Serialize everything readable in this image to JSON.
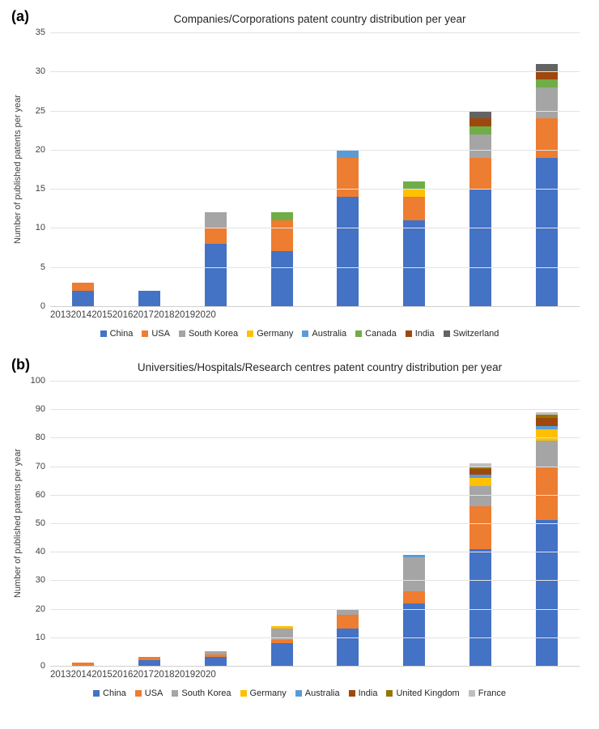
{
  "charts": [
    {
      "panel_label": "(a)",
      "title": "Companies/Corporations patent country distribution per year",
      "ylabel": "Number of published patents per year",
      "chart_data": {
        "type": "bar",
        "stacked": true,
        "grid": true,
        "legend_position": "bottom",
        "categories": [
          "2013",
          "2014",
          "2015",
          "2016",
          "2017",
          "2018",
          "2019",
          "2020"
        ],
        "series": [
          {
            "name": "China",
            "color": "#4472C4",
            "values": [
              2,
              2,
              8,
              7,
              14,
              11,
              15,
              19
            ]
          },
          {
            "name": "USA",
            "color": "#ED7D31",
            "values": [
              1,
              0,
              2,
              4,
              5,
              3,
              4,
              5
            ]
          },
          {
            "name": "South Korea",
            "color": "#A5A5A5",
            "values": [
              0,
              0,
              2,
              0,
              0,
              0,
              3,
              4
            ]
          },
          {
            "name": "Germany",
            "color": "#FFC000",
            "values": [
              0,
              0,
              0,
              0,
              0,
              1,
              0,
              0
            ]
          },
          {
            "name": "Australia",
            "color": "#5B9BD5",
            "values": [
              0,
              0,
              0,
              0,
              1,
              0,
              0,
              0
            ]
          },
          {
            "name": "Canada",
            "color": "#70AD47",
            "values": [
              0,
              0,
              0,
              1,
              0,
              1,
              1,
              1
            ]
          },
          {
            "name": "India",
            "color": "#9E480E",
            "values": [
              0,
              0,
              0,
              0,
              0,
              0,
              1,
              1
            ]
          },
          {
            "name": "Switzerland",
            "color": "#636363",
            "values": [
              0,
              0,
              0,
              0,
              0,
              0,
              1,
              1
            ]
          }
        ],
        "totals": [
          3,
          2,
          12,
          12,
          20,
          16,
          25,
          31
        ],
        "ylim": [
          0,
          35
        ],
        "ytick_step": 5,
        "yticks": [
          0,
          5,
          10,
          15,
          20,
          25,
          30,
          35
        ]
      }
    },
    {
      "panel_label": "(b)",
      "title": "Universities/Hospitals/Research centres patent country distribution per year",
      "ylabel": "Number of published patents per year",
      "chart_data": {
        "type": "bar",
        "stacked": true,
        "grid": true,
        "legend_position": "bottom",
        "categories": [
          "2013",
          "2014",
          "2015",
          "2016",
          "2017",
          "2018",
          "2019",
          "2020"
        ],
        "series": [
          {
            "name": "China",
            "color": "#4472C4",
            "values": [
              0,
              2,
              3,
              8,
              13,
              22,
              41,
              51
            ]
          },
          {
            "name": "USA",
            "color": "#ED7D31",
            "values": [
              1,
              1,
              1,
              1,
              5,
              4,
              15,
              19
            ]
          },
          {
            "name": "South Korea",
            "color": "#A5A5A5",
            "values": [
              0,
              0,
              1,
              4,
              2,
              12,
              7,
              9
            ]
          },
          {
            "name": "Germany",
            "color": "#FFC000",
            "values": [
              0,
              0,
              0,
              1,
              0,
              0,
              3,
              4
            ]
          },
          {
            "name": "Australia",
            "color": "#5B9BD5",
            "values": [
              0,
              0,
              0,
              0,
              0,
              1,
              1,
              1
            ]
          },
          {
            "name": "India",
            "color": "#9E480E",
            "values": [
              0,
              0,
              0,
              0,
              0,
              0,
              2,
              3
            ]
          },
          {
            "name": "United Kingdom",
            "color": "#997300",
            "values": [
              0,
              0,
              0,
              0,
              0,
              0,
              1,
              1
            ]
          },
          {
            "name": "France",
            "color": "#BFBFBF",
            "values": [
              0,
              0,
              0,
              0,
              0,
              0,
              1,
              1
            ]
          }
        ],
        "totals": [
          1,
          3,
          5,
          14,
          20,
          39,
          71,
          89
        ],
        "ylim": [
          0,
          100
        ],
        "ytick_step": 10,
        "yticks": [
          0,
          10,
          20,
          30,
          40,
          50,
          60,
          70,
          80,
          90,
          100
        ]
      }
    }
  ]
}
